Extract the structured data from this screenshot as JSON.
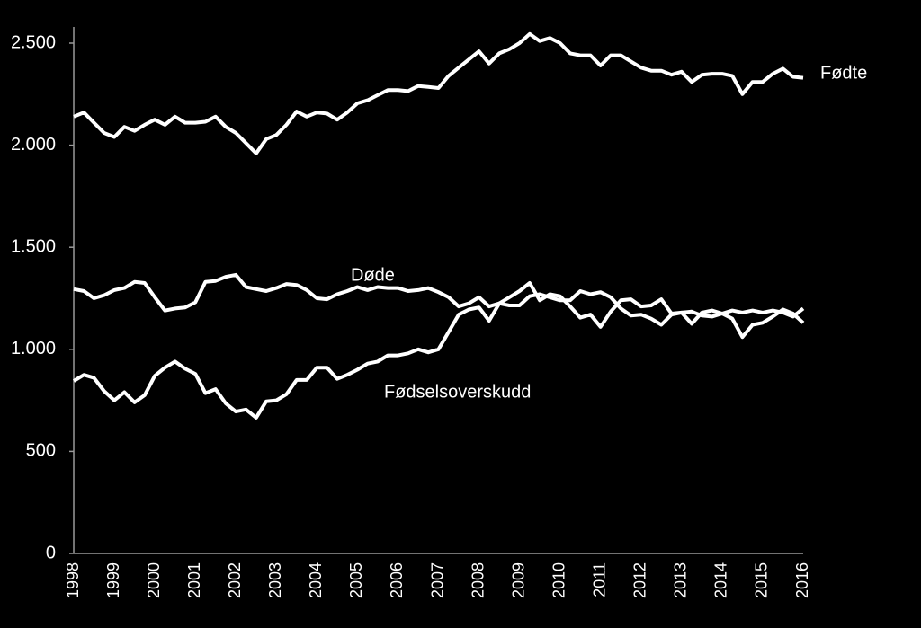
{
  "chart_data": {
    "type": "line",
    "categories": [
      "1998",
      null,
      null,
      null,
      "1999",
      null,
      null,
      null,
      "2000",
      null,
      null,
      null,
      "2001",
      null,
      null,
      null,
      "2002",
      null,
      null,
      null,
      "2003",
      null,
      null,
      null,
      "2004",
      null,
      null,
      null,
      "2005",
      null,
      null,
      null,
      "2006",
      null,
      null,
      null,
      "2007",
      null,
      null,
      null,
      "2008",
      null,
      null,
      null,
      "2009",
      null,
      null,
      null,
      "2010",
      null,
      null,
      null,
      "2011",
      null,
      null,
      null,
      "2012",
      null,
      null,
      null,
      "2013",
      null,
      null,
      null,
      "2014",
      null,
      null,
      null,
      "2015",
      null,
      null,
      null,
      "2016"
    ],
    "series": [
      {
        "name": "Fødte",
        "color": "#ffffff",
        "values": [
          2140,
          2160,
          2110,
          2060,
          2040,
          2090,
          2070,
          2100,
          2125,
          2100,
          2140,
          2110,
          2110,
          2115,
          2140,
          2090,
          2060,
          2010,
          1960,
          2030,
          2050,
          2100,
          2165,
          2140,
          2160,
          2155,
          2125,
          2160,
          2205,
          2220,
          2245,
          2270,
          2270,
          2265,
          2290,
          2285,
          2280,
          2340,
          2380,
          2420,
          2460,
          2400,
          2450,
          2470,
          2500,
          2545,
          2510,
          2525,
          2500,
          2450,
          2440,
          2440,
          2390,
          2440,
          2440,
          2410,
          2380,
          2365,
          2365,
          2345,
          2360,
          2310,
          2345,
          2350,
          2350,
          2340,
          2250,
          2310,
          2310,
          2350,
          2375,
          2335,
          2330
        ]
      },
      {
        "name": "Døde",
        "color": "#ffffff",
        "values": [
          1295,
          1285,
          1250,
          1265,
          1290,
          1300,
          1330,
          1325,
          1255,
          1190,
          1200,
          1205,
          1230,
          1330,
          1335,
          1355,
          1365,
          1305,
          1295,
          1285,
          1300,
          1320,
          1315,
          1290,
          1250,
          1245,
          1270,
          1285,
          1305,
          1290,
          1305,
          1300,
          1300,
          1285,
          1290,
          1300,
          1280,
          1255,
          1210,
          1225,
          1255,
          1210,
          1225,
          1215,
          1215,
          1260,
          1270,
          1255,
          1240,
          1240,
          1285,
          1270,
          1280,
          1255,
          1200,
          1165,
          1170,
          1150,
          1120,
          1170,
          1180,
          1185,
          1165,
          1160,
          1175,
          1190,
          1180,
          1190,
          1180,
          1190,
          1180,
          1160,
          1200
        ]
      },
      {
        "name": "Fødselsoverskudd",
        "color": "#ffffff",
        "values": [
          845,
          875,
          860,
          795,
          750,
          790,
          740,
          775,
          870,
          910,
          940,
          905,
          880,
          785,
          805,
          735,
          695,
          705,
          665,
          745,
          750,
          780,
          850,
          850,
          910,
          910,
          855,
          875,
          900,
          930,
          940,
          970,
          970,
          980,
          1000,
          985,
          1000,
          1085,
          1170,
          1195,
          1205,
          1140,
          1225,
          1255,
          1285,
          1325,
          1240,
          1270,
          1260,
          1210,
          1155,
          1170,
          1110,
          1185,
          1240,
          1245,
          1210,
          1215,
          1245,
          1175,
          1180,
          1125,
          1180,
          1190,
          1175,
          1150,
          1060,
          1120,
          1130,
          1160,
          1195,
          1175,
          1130
        ]
      }
    ],
    "ylim": [
      0,
      2500
    ],
    "yticks": [
      0,
      500,
      {
        "value": 1000,
        "label": "1.000"
      },
      {
        "value": 1500,
        "label": "1.500"
      },
      {
        "value": 2000,
        "label": "2.000"
      },
      {
        "value": 2500,
        "label": "2.500"
      }
    ],
    "grid": false
  }
}
